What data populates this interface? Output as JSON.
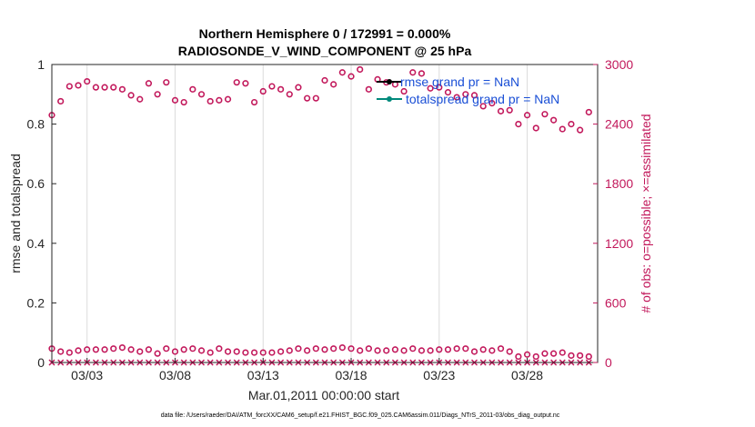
{
  "chart_data": {
    "type": "scatter",
    "title_line1": "Northern Hemisphere 0 / 172991 = 0.000%",
    "title_line2": "RADIOSONDE_V_WIND_COMPONENT @ 25 hPa",
    "xlabel": "Mar.01,2011 00:00:00 start",
    "ylabel_left": "rmse and totalspread",
    "ylabel_right": "# of obs: o=possible; ×=assimilated",
    "x_ticks": [
      {
        "day": 3,
        "label": "03/03"
      },
      {
        "day": 8,
        "label": "03/08"
      },
      {
        "day": 13,
        "label": "03/13"
      },
      {
        "day": 18,
        "label": "03/18"
      },
      {
        "day": 23,
        "label": "03/23"
      },
      {
        "day": 28,
        "label": "03/28"
      }
    ],
    "x_range": [
      1,
      32
    ],
    "y_left_range": [
      0,
      1
    ],
    "y_left_ticks": [
      "0",
      "0.2",
      "0.4",
      "0.6",
      "0.8",
      "1"
    ],
    "y_right_range": [
      0,
      3000
    ],
    "y_right_ticks": [
      "0",
      "600",
      "1200",
      "1800",
      "2400",
      "3000"
    ],
    "legend": [
      {
        "label": "rmse grand pr = NaN",
        "color": "#000000"
      },
      {
        "label": "totalspread grand pr = NaN",
        "color": "#00897b"
      }
    ],
    "series": [
      {
        "name": "possible (upper)",
        "marker": "o",
        "color": "#c2185b",
        "x": [
          1.0,
          1.5,
          2.0,
          2.5,
          3.0,
          3.5,
          4.0,
          4.5,
          5.0,
          5.5,
          6.0,
          6.5,
          7.0,
          7.5,
          8.0,
          8.5,
          9.0,
          9.5,
          10.0,
          10.5,
          11.0,
          11.5,
          12.0,
          12.5,
          13.0,
          13.5,
          14.0,
          14.5,
          15.0,
          15.5,
          16.0,
          16.5,
          17.0,
          17.5,
          18.0,
          18.5,
          19.0,
          19.5,
          20.0,
          20.5,
          21.0,
          21.5,
          22.0,
          22.5,
          23.0,
          23.5,
          24.0,
          24.5,
          25.0,
          25.5,
          26.0,
          26.5,
          27.0,
          27.5,
          28.0,
          28.5,
          29.0,
          29.5,
          30.0,
          30.5,
          31.0,
          31.5
        ],
        "y": [
          2490,
          2630,
          2780,
          2790,
          2830,
          2770,
          2770,
          2770,
          2750,
          2690,
          2650,
          2810,
          2700,
          2820,
          2640,
          2620,
          2750,
          2700,
          2630,
          2640,
          2650,
          2820,
          2810,
          2620,
          2730,
          2780,
          2750,
          2700,
          2770,
          2660,
          2660,
          2840,
          2800,
          2920,
          2880,
          2950,
          2750,
          2850,
          2820,
          2800,
          2730,
          2920,
          2910,
          2760,
          2770,
          2720,
          2670,
          2700,
          2690,
          2580,
          2610,
          2530,
          2540,
          2400,
          2490,
          2360,
          2500,
          2440,
          2350,
          2400,
          2340,
          2520
        ]
      },
      {
        "name": "possible (lower)",
        "marker": "o",
        "color": "#c2185b",
        "x": [
          1.0,
          1.5,
          2.0,
          2.5,
          3.0,
          3.5,
          4.0,
          4.5,
          5.0,
          5.5,
          6.0,
          6.5,
          7.0,
          7.5,
          8.0,
          8.5,
          9.0,
          9.5,
          10.0,
          10.5,
          11.0,
          11.5,
          12.0,
          12.5,
          13.0,
          13.5,
          14.0,
          14.5,
          15.0,
          15.5,
          16.0,
          16.5,
          17.0,
          17.5,
          18.0,
          18.5,
          19.0,
          19.5,
          20.0,
          20.5,
          21.0,
          21.5,
          22.0,
          22.5,
          23.0,
          23.5,
          24.0,
          24.5,
          25.0,
          25.5,
          26.0,
          26.5,
          27.0,
          27.5,
          28.0,
          28.5,
          29.0,
          29.5,
          30.0,
          30.5,
          31.0,
          31.5
        ],
        "y": [
          140,
          110,
          100,
          120,
          130,
          130,
          130,
          140,
          150,
          130,
          110,
          130,
          90,
          140,
          110,
          130,
          140,
          120,
          100,
          140,
          110,
          110,
          100,
          100,
          100,
          100,
          110,
          120,
          140,
          120,
          140,
          130,
          140,
          150,
          140,
          120,
          140,
          120,
          120,
          130,
          120,
          140,
          120,
          120,
          130,
          130,
          140,
          140,
          110,
          130,
          120,
          140,
          110,
          60,
          80,
          60,
          90,
          90,
          100,
          70,
          70,
          60
        ]
      },
      {
        "name": "assimilated",
        "marker": "x",
        "color": "#c2185b",
        "x": [
          1.0,
          1.5,
          2.0,
          2.5,
          3.0,
          3.5,
          4.0,
          4.5,
          5.0,
          5.5,
          6.0,
          6.5,
          7.0,
          7.5,
          8.0,
          8.5,
          9.0,
          9.5,
          10.0,
          10.5,
          11.0,
          11.5,
          12.0,
          12.5,
          13.0,
          13.5,
          14.0,
          14.5,
          15.0,
          15.5,
          16.0,
          16.5,
          17.0,
          17.5,
          18.0,
          18.5,
          19.0,
          19.5,
          20.0,
          20.5,
          21.0,
          21.5,
          22.0,
          22.5,
          23.0,
          23.5,
          24.0,
          24.5,
          25.0,
          25.5,
          26.0,
          26.5,
          27.0,
          27.5,
          28.0,
          28.5,
          29.0,
          29.5,
          30.0,
          30.5,
          31.0,
          31.5
        ],
        "y": [
          0,
          0,
          0,
          0,
          0,
          0,
          0,
          0,
          0,
          0,
          0,
          0,
          0,
          0,
          0,
          0,
          0,
          0,
          0,
          0,
          0,
          0,
          0,
          0,
          0,
          0,
          0,
          0,
          0,
          0,
          0,
          0,
          0,
          0,
          0,
          0,
          0,
          0,
          0,
          0,
          0,
          0,
          0,
          0,
          0,
          0,
          0,
          0,
          0,
          0,
          0,
          0,
          0,
          0,
          0,
          0,
          0,
          0,
          0,
          0,
          0,
          0
        ]
      }
    ]
  },
  "footer": "data file: /Users/raeder/DAI/ATM_forcXX/CAM6_setup/f.e21.FHIST_BGC.f09_025.CAM6assim.011/Diags_NTrS_2011-03/obs_diag_output.nc"
}
